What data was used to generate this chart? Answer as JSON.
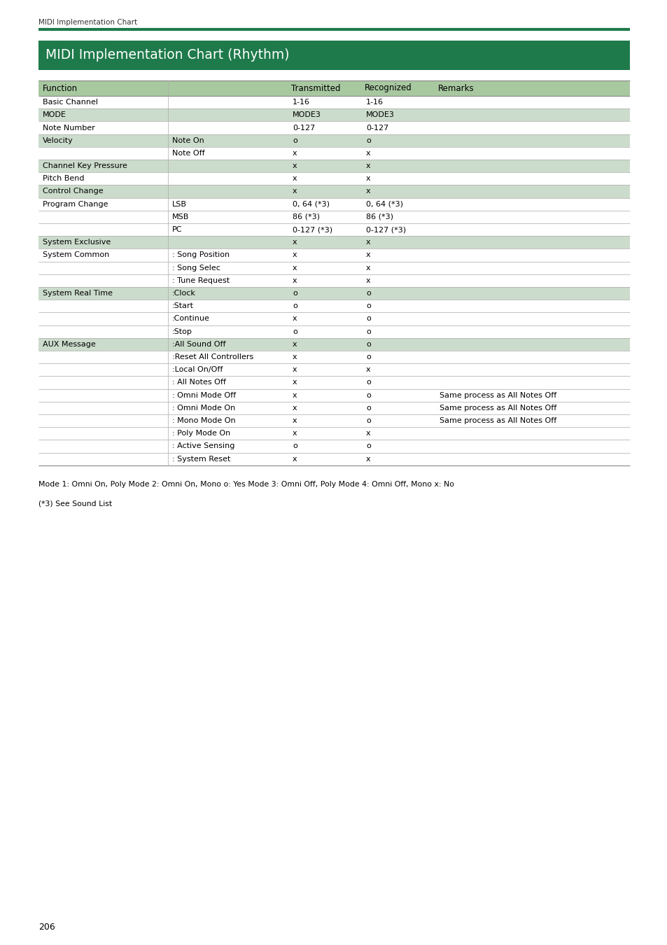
{
  "page_header": "MIDI Implementation Chart",
  "title": "MIDI Implementation Chart (Rhythm)",
  "title_bg": "#1e7a4a",
  "title_color": "#ffffff",
  "header_bg": "#a8c8a0",
  "row_bg_shaded": "#ccdccc",
  "row_bg_white": "#ffffff",
  "top_line_color": "#1e7a4a",
  "rows": [
    {
      "function": "Basic Channel",
      "sub": "",
      "transmitted": "1-16",
      "recognized": "1-16",
      "remarks": "",
      "shaded": false
    },
    {
      "function": "MODE",
      "sub": "",
      "transmitted": "MODE3",
      "recognized": "MODE3",
      "remarks": "",
      "shaded": true
    },
    {
      "function": "Note Number",
      "sub": "",
      "transmitted": "0-127",
      "recognized": "0-127",
      "remarks": "",
      "shaded": false
    },
    {
      "function": "Velocity",
      "sub": "Note On",
      "transmitted": "o",
      "recognized": "o",
      "remarks": "",
      "shaded": true
    },
    {
      "function": "",
      "sub": "Note Off",
      "transmitted": "x",
      "recognized": "x",
      "remarks": "",
      "shaded": false
    },
    {
      "function": "Channel Key Pressure",
      "sub": "",
      "transmitted": "x",
      "recognized": "x",
      "remarks": "",
      "shaded": true
    },
    {
      "function": "Pitch Bend",
      "sub": "",
      "transmitted": "x",
      "recognized": "x",
      "remarks": "",
      "shaded": false
    },
    {
      "function": "Control Change",
      "sub": "",
      "transmitted": "x",
      "recognized": "x",
      "remarks": "",
      "shaded": true
    },
    {
      "function": "Program Change",
      "sub": "LSB",
      "transmitted": "0, 64 (*3)",
      "recognized": "0, 64 (*3)",
      "remarks": "",
      "shaded": false
    },
    {
      "function": "",
      "sub": "MSB",
      "transmitted": "86 (*3)",
      "recognized": "86 (*3)",
      "remarks": "",
      "shaded": false
    },
    {
      "function": "",
      "sub": "PC",
      "transmitted": "0-127 (*3)",
      "recognized": "0-127 (*3)",
      "remarks": "",
      "shaded": false
    },
    {
      "function": "System Exclusive",
      "sub": "",
      "transmitted": "x",
      "recognized": "x",
      "remarks": "",
      "shaded": true
    },
    {
      "function": "System Common",
      "sub": ": Song Position",
      "transmitted": "x",
      "recognized": "x",
      "remarks": "",
      "shaded": false
    },
    {
      "function": "",
      "sub": ": Song Selec",
      "transmitted": "x",
      "recognized": "x",
      "remarks": "",
      "shaded": false
    },
    {
      "function": "",
      "sub": ": Tune Request",
      "transmitted": "x",
      "recognized": "x",
      "remarks": "",
      "shaded": false
    },
    {
      "function": "System Real Time",
      "sub": ":Clock",
      "transmitted": "o",
      "recognized": "o",
      "remarks": "",
      "shaded": true
    },
    {
      "function": "",
      "sub": ":Start",
      "transmitted": "o",
      "recognized": "o",
      "remarks": "",
      "shaded": false
    },
    {
      "function": "",
      "sub": ":Continue",
      "transmitted": "x",
      "recognized": "o",
      "remarks": "",
      "shaded": false
    },
    {
      "function": "",
      "sub": ":Stop",
      "transmitted": "o",
      "recognized": "o",
      "remarks": "",
      "shaded": false
    },
    {
      "function": "AUX Message",
      "sub": ":All Sound Off",
      "transmitted": "x",
      "recognized": "o",
      "remarks": "",
      "shaded": true
    },
    {
      "function": "",
      "sub": ":Reset All Controllers",
      "transmitted": "x",
      "recognized": "o",
      "remarks": "",
      "shaded": false
    },
    {
      "function": "",
      "sub": ":Local On/Off",
      "transmitted": "x",
      "recognized": "x",
      "remarks": "",
      "shaded": false
    },
    {
      "function": "",
      "sub": ": All Notes Off",
      "transmitted": "x",
      "recognized": "o",
      "remarks": "",
      "shaded": false
    },
    {
      "function": "",
      "sub": ": Omni Mode Off",
      "transmitted": "x",
      "recognized": "o",
      "remarks": "Same process as All Notes Off",
      "shaded": false
    },
    {
      "function": "",
      "sub": ": Omni Mode On",
      "transmitted": "x",
      "recognized": "o",
      "remarks": "Same process as All Notes Off",
      "shaded": false
    },
    {
      "function": "",
      "sub": ": Mono Mode On",
      "transmitted": "x",
      "recognized": "o",
      "remarks": "Same process as All Notes Off",
      "shaded": false
    },
    {
      "function": "",
      "sub": ": Poly Mode On",
      "transmitted": "x",
      "recognized": "x",
      "remarks": "",
      "shaded": false
    },
    {
      "function": "",
      "sub": ": Active Sensing",
      "transmitted": "o",
      "recognized": "o",
      "remarks": "",
      "shaded": false
    },
    {
      "function": "",
      "sub": ": System Reset",
      "transmitted": "x",
      "recognized": "x",
      "remarks": "",
      "shaded": false
    }
  ],
  "footnote1": "Mode 1: Omni On, Poly Mode 2: Omni On, Mono o: Yes Mode 3: Omni Off, Poly Mode 4: Omni Off, Mono x: No",
  "footnote2": "(*3) See Sound List",
  "page_number": "206"
}
